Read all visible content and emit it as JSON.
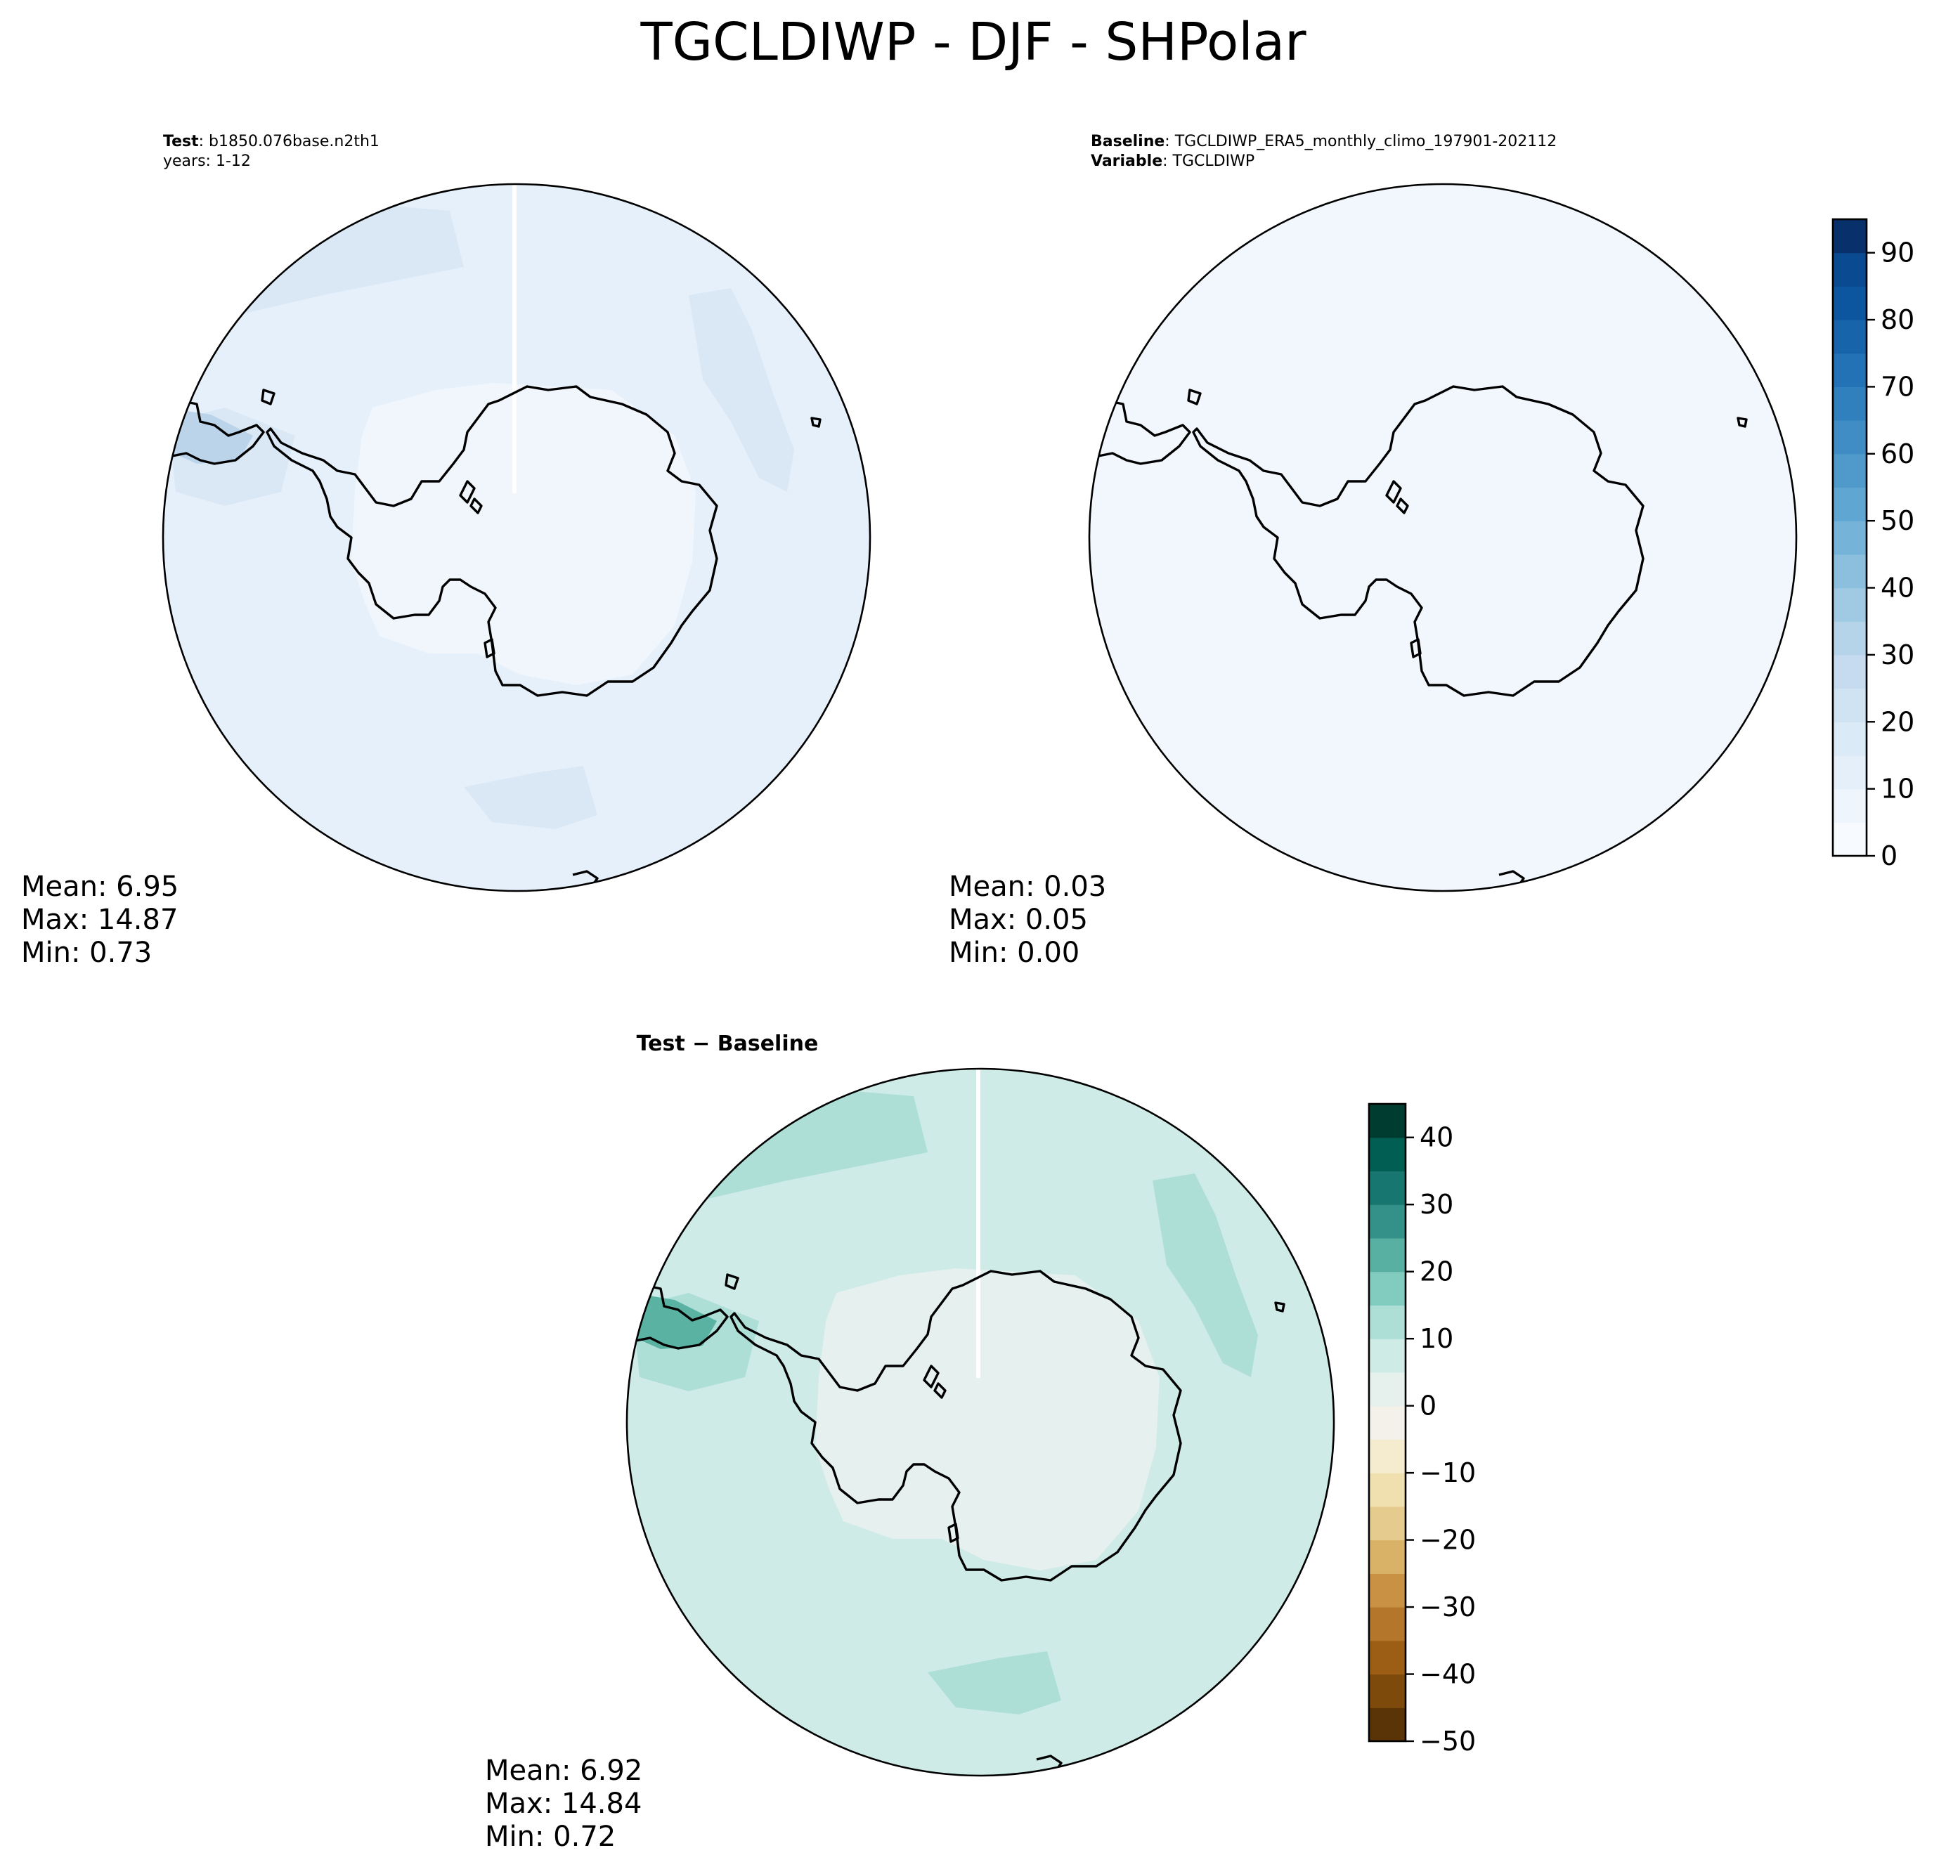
{
  "figure": {
    "title": "TGCLDIWP - DJF - SHPolar"
  },
  "colors": {
    "test_ocean": "#e6f0fa",
    "test_ocean_band": "#dae8f6",
    "test_ice": "#f1f6fc",
    "test_high": "#bcd4ea",
    "baseline_fill": "#f2f7fd",
    "diff_ocean": "#cfebe7",
    "diff_band": "#addfd7",
    "diff_ice": "#e5f0ef",
    "diff_high": "#5ab2a3",
    "coast": "#000000"
  },
  "chart_data": [
    {
      "type": "polar_contour_map",
      "projection": "south_polar_stereographic",
      "role": "test",
      "header": [
        {
          "key": "Test",
          "value": "b1850.076base.n2th1"
        },
        {
          "key": "",
          "value": "years: 1-12"
        }
      ],
      "stats": {
        "mean": "Mean:  6.95",
        "max": "Max: 14.87",
        "min": "Min:  0.73"
      },
      "colormap": "Blues",
      "colorbar": "shared_with_baseline"
    },
    {
      "type": "polar_contour_map",
      "projection": "south_polar_stereographic",
      "role": "baseline",
      "header": [
        {
          "key": "Baseline",
          "value": "TGCLDIWP_ERA5_monthly_climo_197901-202112"
        },
        {
          "key": "Variable",
          "value": "TGCLDIWP"
        }
      ],
      "stats": {
        "mean": "Mean:  0.03",
        "max": "Max:  0.05",
        "min": "Min:  0.00"
      },
      "colorbar": {
        "colormap": "Blues",
        "min": 0,
        "max": 95,
        "levels": 19,
        "step": 5,
        "ticks": [
          "0",
          "10",
          "20",
          "30",
          "40",
          "50",
          "60",
          "70",
          "80",
          "90"
        ],
        "tick_values": [
          0,
          10,
          20,
          30,
          40,
          50,
          60,
          70,
          80,
          90
        ],
        "colors": [
          "#f7fbff",
          "#eef5fc",
          "#e4eff9",
          "#daeaf6",
          "#d0e3f3",
          "#c6dbef",
          "#b5d4e9",
          "#a0cae3",
          "#8bbfdd",
          "#75b4d8",
          "#60a6d2",
          "#4f9acb",
          "#3f8dc4",
          "#3080bd",
          "#2272b5",
          "#1764ab",
          "#0c56a0",
          "#0a4a90",
          "#08306b"
        ]
      }
    },
    {
      "type": "polar_contour_map",
      "projection": "south_polar_stereographic",
      "role": "difference",
      "header_title": "Test − Baseline",
      "stats": {
        "mean": "Mean:  6.92",
        "max": "Max: 14.84",
        "min": "Min:  0.72"
      },
      "colorbar": {
        "colormap": "BrBG",
        "min": -50,
        "max": 45,
        "levels": 19,
        "step": 5,
        "ticks": [
          "−50",
          "−40",
          "−30",
          "−20",
          "−10",
          "0",
          "10",
          "20",
          "30",
          "40"
        ],
        "tick_values": [
          -50,
          -40,
          -30,
          -20,
          -10,
          0,
          10,
          20,
          30,
          40
        ],
        "colors": [
          "#5a3407",
          "#7d4a0b",
          "#9c5e14",
          "#b4762a",
          "#c99144",
          "#dab267",
          "#e6cb8e",
          "#f0dfaf",
          "#f5ebcf",
          "#f3f1e9",
          "#e6f1ee",
          "#cfebe6",
          "#addfd7",
          "#82ccbf",
          "#58b0a2",
          "#33918a",
          "#177670",
          "#015e52",
          "#003c30"
        ]
      }
    }
  ]
}
